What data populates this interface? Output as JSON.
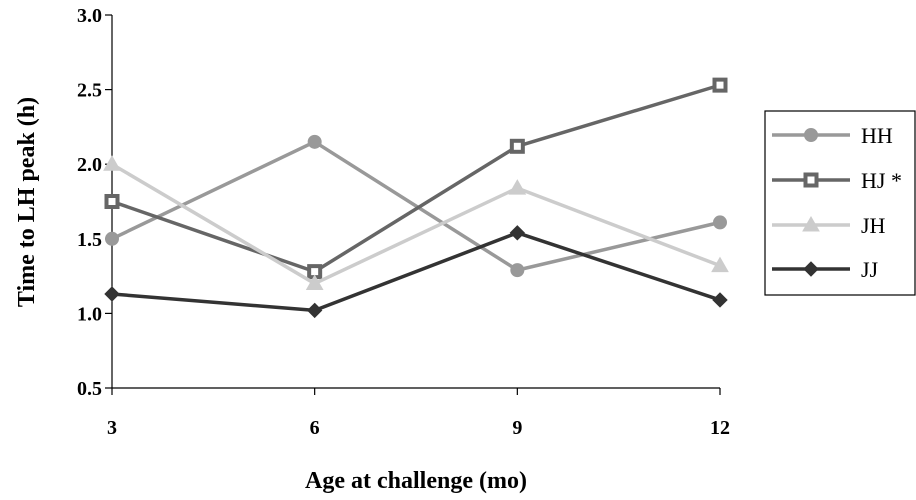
{
  "chart_data": {
    "type": "line",
    "x": [
      3,
      6,
      9,
      12
    ],
    "x_tick_labels": [
      "3",
      "6",
      "9",
      "12"
    ],
    "y_tick_labels": [
      "0.5",
      "1.0",
      "1.5",
      "2.0",
      "2.5",
      "3.0"
    ],
    "y_ticks": [
      0.5,
      1.0,
      1.5,
      2.0,
      2.5,
      3.0
    ],
    "xlabel": "Age at challenge (mo)",
    "ylabel": "Time to LH peak (h)",
    "ylim": [
      0.5,
      3.0
    ],
    "grid": false,
    "legend_position": "right",
    "series": [
      {
        "name": "HH",
        "values": [
          1.5,
          2.15,
          1.29,
          1.61
        ],
        "color": "#999999",
        "marker": "circle"
      },
      {
        "name": "HJ *",
        "values": [
          1.75,
          1.28,
          2.12,
          2.53
        ],
        "color": "#666666",
        "marker": "square-open"
      },
      {
        "name": "JH",
        "values": [
          2.0,
          1.2,
          1.84,
          1.32
        ],
        "color": "#cccccc",
        "marker": "triangle"
      },
      {
        "name": "JJ",
        "values": [
          1.13,
          1.02,
          1.54,
          1.09
        ],
        "color": "#333333",
        "marker": "diamond"
      }
    ]
  }
}
